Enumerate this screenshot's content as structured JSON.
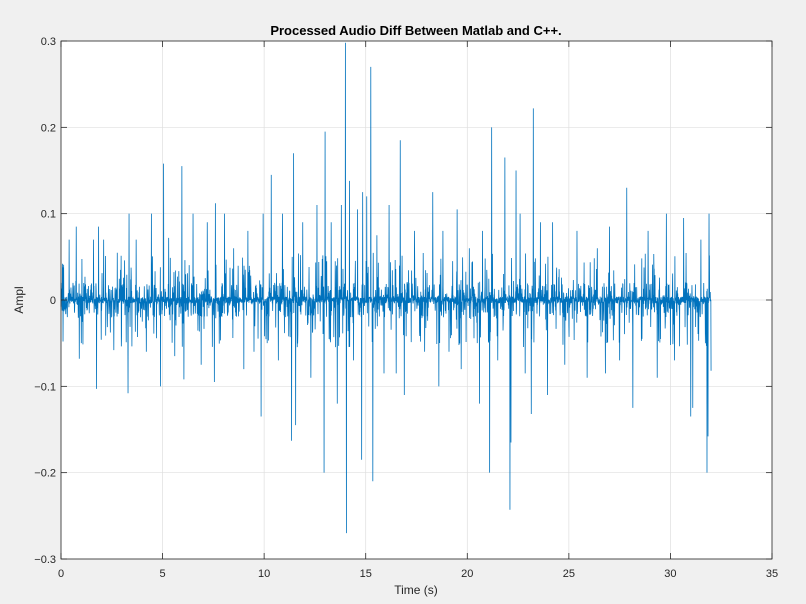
{
  "chart_data": {
    "type": "line",
    "title": "Processed Audio Diff Between Matlab and C++.",
    "xlabel": "Time (s)",
    "ylabel": "Ampl",
    "xlim": [
      0,
      35
    ],
    "ylim": [
      -0.3,
      0.3
    ],
    "xticks": [
      0,
      5,
      10,
      15,
      20,
      25,
      30,
      35
    ],
    "xtick_labels": [
      "0",
      "5",
      "10",
      "15",
      "20",
      "25",
      "30",
      "35"
    ],
    "yticks": [
      -0.3,
      -0.2,
      -0.1,
      0,
      0.1,
      0.2,
      0.3
    ],
    "ytick_labels": [
      "−0.3",
      "−0.2",
      "−0.1",
      "0",
      "0.1",
      "0.2",
      "0.3"
    ],
    "grid": true,
    "signal": {
      "x_start": 0,
      "x_end": 32,
      "color": "#0072bd",
      "peaks": [
        [
          0.07,
          0.042
        ],
        [
          0.1,
          -0.048
        ],
        [
          0.4,
          0.07
        ],
        [
          0.75,
          0.085
        ],
        [
          0.9,
          -0.068
        ],
        [
          1.0,
          -0.05
        ],
        [
          1.6,
          0.07
        ],
        [
          1.75,
          -0.103
        ],
        [
          1.85,
          0.085
        ],
        [
          2.1,
          0.07
        ],
        [
          2.6,
          -0.058
        ],
        [
          3.3,
          -0.108
        ],
        [
          3.35,
          0.1
        ],
        [
          3.7,
          0.07
        ],
        [
          4.2,
          -0.06
        ],
        [
          4.45,
          0.1
        ],
        [
          4.9,
          -0.1
        ],
        [
          5.05,
          0.158
        ],
        [
          5.3,
          0.072
        ],
        [
          5.6,
          -0.065
        ],
        [
          5.95,
          0.155
        ],
        [
          6.05,
          -0.092
        ],
        [
          6.5,
          0.1
        ],
        [
          6.9,
          -0.075
        ],
        [
          7.2,
          0.09
        ],
        [
          7.55,
          -0.095
        ],
        [
          7.6,
          0.112
        ],
        [
          8.05,
          0.1
        ],
        [
          8.5,
          0.06
        ],
        [
          9.0,
          -0.08
        ],
        [
          9.2,
          0.08
        ],
        [
          9.5,
          -0.06
        ],
        [
          9.85,
          -0.135
        ],
        [
          9.95,
          0.1
        ],
        [
          10.15,
          -0.05
        ],
        [
          10.35,
          0.145
        ],
        [
          10.7,
          -0.07
        ],
        [
          10.9,
          0.1
        ],
        [
          11.35,
          -0.163
        ],
        [
          11.45,
          0.17
        ],
        [
          11.55,
          -0.145
        ],
        [
          11.9,
          0.09
        ],
        [
          12.3,
          -0.09
        ],
        [
          12.6,
          0.11
        ],
        [
          12.95,
          -0.2
        ],
        [
          13.0,
          0.195
        ],
        [
          13.3,
          0.09
        ],
        [
          13.6,
          -0.12
        ],
        [
          13.8,
          0.11
        ],
        [
          14.0,
          0.298
        ],
        [
          14.05,
          -0.27
        ],
        [
          14.2,
          0.138
        ],
        [
          14.4,
          -0.07
        ],
        [
          14.6,
          0.105
        ],
        [
          14.8,
          -0.185
        ],
        [
          14.85,
          0.125
        ],
        [
          15.05,
          0.12
        ],
        [
          15.25,
          0.27
        ],
        [
          15.35,
          -0.21
        ],
        [
          15.55,
          0.075
        ],
        [
          15.9,
          -0.085
        ],
        [
          16.15,
          0.11
        ],
        [
          16.5,
          -0.085
        ],
        [
          16.7,
          0.185
        ],
        [
          16.9,
          -0.11
        ],
        [
          17.4,
          0.08
        ],
        [
          17.9,
          -0.06
        ],
        [
          18.3,
          0.125
        ],
        [
          18.6,
          -0.1
        ],
        [
          18.8,
          0.08
        ],
        [
          19.1,
          -0.06
        ],
        [
          19.5,
          0.105
        ],
        [
          19.7,
          -0.08
        ],
        [
          20.1,
          0.06
        ],
        [
          20.6,
          -0.12
        ],
        [
          20.75,
          0.08
        ],
        [
          21.1,
          -0.2
        ],
        [
          21.2,
          0.2
        ],
        [
          21.5,
          -0.07
        ],
        [
          21.85,
          0.165
        ],
        [
          22.1,
          -0.243
        ],
        [
          22.15,
          -0.165
        ],
        [
          22.4,
          0.15
        ],
        [
          22.6,
          0.1
        ],
        [
          22.85,
          -0.085
        ],
        [
          23.15,
          -0.132
        ],
        [
          23.25,
          0.222
        ],
        [
          23.6,
          0.09
        ],
        [
          23.95,
          -0.11
        ],
        [
          24.2,
          0.09
        ],
        [
          24.8,
          -0.075
        ],
        [
          25.4,
          0.08
        ],
        [
          25.9,
          -0.09
        ],
        [
          26.4,
          0.06
        ],
        [
          26.8,
          -0.085
        ],
        [
          27.0,
          0.085
        ],
        [
          27.5,
          -0.07
        ],
        [
          27.85,
          0.13
        ],
        [
          28.15,
          -0.125
        ],
        [
          28.6,
          -0.045
        ],
        [
          28.9,
          0.08
        ],
        [
          29.35,
          -0.09
        ],
        [
          29.8,
          0.1
        ],
        [
          30.2,
          -0.07
        ],
        [
          30.65,
          0.095
        ],
        [
          31.0,
          -0.135
        ],
        [
          31.1,
          -0.125
        ],
        [
          31.5,
          0.07
        ],
        [
          31.8,
          -0.2
        ],
        [
          31.85,
          -0.158
        ],
        [
          31.9,
          0.1
        ],
        [
          32.0,
          -0.082
        ]
      ]
    }
  }
}
